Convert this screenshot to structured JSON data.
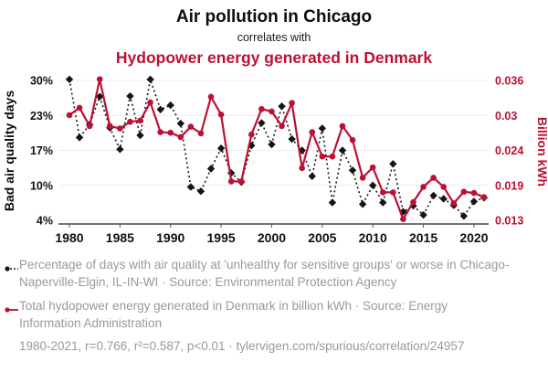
{
  "header": {
    "title": "Air pollution in Chicago",
    "subtitle": "correlates with",
    "title2": "Hydopower energy generated in Denmark"
  },
  "colors": {
    "accent_red": "#bb1133",
    "series_black": "#151515",
    "legend_gray": "#999999",
    "gridline": "#ececec",
    "axis_line": "#222222",
    "tick_mark": "#555555"
  },
  "chart_data": {
    "type": "line",
    "title": "Air pollution in Chicago correlates with Hydopower energy generated in Denmark",
    "grid": true,
    "legend_position": "bottom",
    "x": [
      1980,
      1981,
      1982,
      1983,
      1984,
      1985,
      1986,
      1987,
      1988,
      1989,
      1990,
      1991,
      1992,
      1993,
      1994,
      1995,
      1996,
      1997,
      1998,
      1999,
      2000,
      2001,
      2002,
      2003,
      2004,
      2005,
      2006,
      2007,
      2008,
      2009,
      2010,
      2011,
      2012,
      2013,
      2014,
      2015,
      2016,
      2017,
      2018,
      2019,
      2020,
      2021
    ],
    "x_axis": {
      "ticks": [
        1980,
        1985,
        1990,
        1995,
        2000,
        2005,
        2010,
        2015,
        2020
      ],
      "range": [
        1980,
        2021
      ]
    },
    "left_axis": {
      "label": "Bad air quality days",
      "ticks": [
        "30%",
        "23%",
        "17%",
        "10%",
        "4%"
      ],
      "range": [
        4,
        30
      ]
    },
    "right_axis": {
      "label": "Billion kWh",
      "ticks": [
        "0.036",
        "0.03",
        "0.024",
        "0.019",
        "0.013"
      ],
      "range": [
        0.013,
        0.036
      ]
    },
    "series": [
      {
        "name": "Percentage of days with bad air quality in Chicago",
        "axis": "left",
        "color": "#151515",
        "line": "dashed",
        "marker": "diamond",
        "values": [
          30.2,
          19.4,
          21.8,
          27,
          21.2,
          17.2,
          27.1,
          19.8,
          30.2,
          24.6,
          25.4,
          22,
          10.2,
          9.4,
          13.6,
          17.4,
          12.8,
          11.1,
          17.9,
          22.1,
          18.1,
          25.2,
          19.1,
          17,
          12.2,
          21.1,
          7.3,
          17,
          13.3,
          7,
          10.5,
          7.3,
          14.5,
          5.6,
          6.7,
          5,
          8.6,
          8,
          6.8,
          4.8,
          7.5,
          8.2
        ]
      },
      {
        "name": "Total hydopower energy generated in Denmark (billion kWh)",
        "axis": "right",
        "color": "#bb1133",
        "line": "solid",
        "marker": "circle",
        "values": [
          0.0303,
          0.0315,
          0.0285,
          0.0362,
          0.0285,
          0.0281,
          0.0292,
          0.0294,
          0.0324,
          0.0275,
          0.0274,
          0.0267,
          0.0284,
          0.0273,
          0.0333,
          0.0304,
          0.0194,
          0.0194,
          0.0271,
          0.0313,
          0.0309,
          0.0285,
          0.0323,
          0.0216,
          0.0275,
          0.0235,
          0.0235,
          0.0285,
          0.0262,
          0.02,
          0.0217,
          0.0176,
          0.0176,
          0.0132,
          0.016,
          0.0185,
          0.02,
          0.0185,
          0.0158,
          0.0177,
          0.0175,
          0.0168
        ]
      }
    ]
  },
  "legend": {
    "items": [
      {
        "marker": "black-dashed-dot",
        "text": "Percentage of days with air quality at 'unhealthy for sensitive groups' or worse in Chicago-Naperville-Elgin, IL-IN-WI · Source: Environmental Protection Agency"
      },
      {
        "marker": "red-solid-dot",
        "text": "Total hydopower energy generated in Denmark in billion kWh · Source: Energy Information Administration"
      }
    ],
    "footnote": "1980-2021, r=0.766, r²=0.587, p<0.01 · tylervigen.com/spurious/correlation/24957"
  }
}
